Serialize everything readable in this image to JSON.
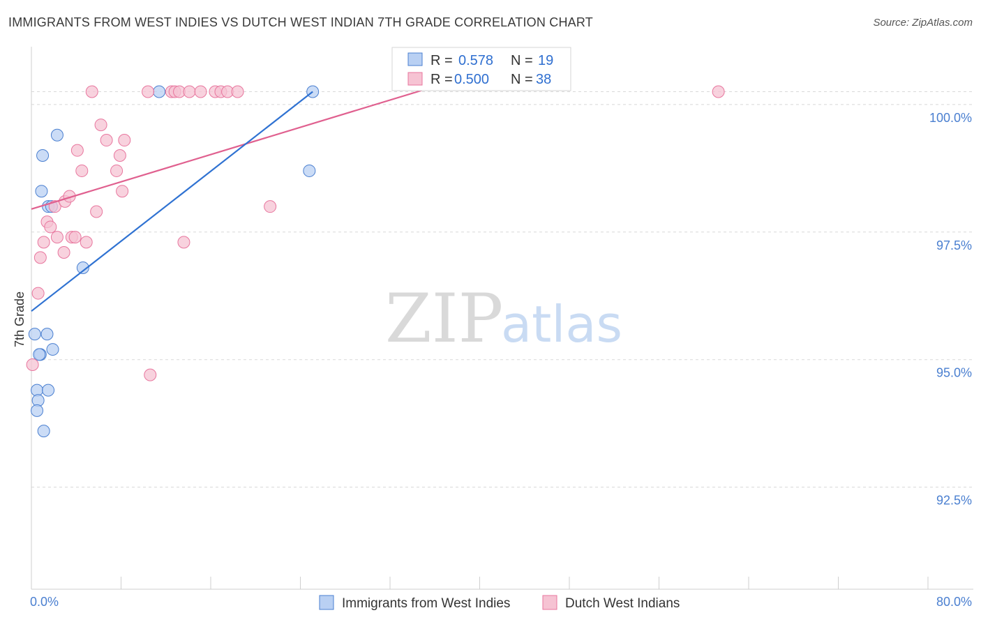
{
  "title": "IMMIGRANTS FROM WEST INDIES VS DUTCH WEST INDIAN 7TH GRADE CORRELATION CHART",
  "source": "Source: ZipAtlas.com",
  "watermark": {
    "zip": "ZIP",
    "atlas": "atlas"
  },
  "colors": {
    "blue": "#4a7fd0",
    "blue_fill": "#b9d0f3",
    "blue_line": "#2f72d2",
    "pink": "#e8769e",
    "pink_fill": "#f6c3d3",
    "pink_line": "#e0608f",
    "grid": "#d8d8d8",
    "axis_text": "#4a7fd0"
  },
  "legend": {
    "r_label": "R =",
    "n_label": "N =",
    "entries": [
      {
        "r": "0.578",
        "n": "19"
      },
      {
        "r": "0.500",
        "n": "38"
      }
    ]
  },
  "chart_data": {
    "type": "scatter",
    "title": "IMMIGRANTS FROM WEST INDIES VS DUTCH WEST INDIAN 7TH GRADE CORRELATION CHART",
    "xlabel": "",
    "ylabel": "7th Grade",
    "xlim": [
      0,
      80
    ],
    "ylim": [
      90.5,
      101.2
    ],
    "x_tick_labels": [
      {
        "value": 0,
        "label": "0.0%"
      },
      {
        "value": 80,
        "label": "80.0%"
      }
    ],
    "y_ticks": [
      {
        "value": 100.0,
        "label": "100.0%"
      },
      {
        "value": 97.5,
        "label": "97.5%"
      },
      {
        "value": 95.0,
        "label": "95.0%"
      },
      {
        "value": 92.5,
        "label": "92.5%"
      }
    ],
    "series": [
      {
        "name": "Immigrants from West Indies",
        "color": "blue",
        "points": [
          [
            0.3,
            95.5
          ],
          [
            0.5,
            94.4
          ],
          [
            0.6,
            94.2
          ],
          [
            0.5,
            94.0
          ],
          [
            0.8,
            95.1
          ],
          [
            0.9,
            98.3
          ],
          [
            1.0,
            99.0
          ],
          [
            1.1,
            93.6
          ],
          [
            1.4,
            95.5
          ],
          [
            1.5,
            94.4
          ],
          [
            1.5,
            98.0
          ],
          [
            1.8,
            98.0
          ],
          [
            1.9,
            95.2
          ],
          [
            2.3,
            99.4
          ],
          [
            4.6,
            96.8
          ],
          [
            11.4,
            100.25
          ],
          [
            24.8,
            98.7
          ],
          [
            25.1,
            100.25
          ],
          [
            0.7,
            95.1
          ]
        ],
        "trend": {
          "x": [
            0.0,
            25.1
          ],
          "y": [
            95.95,
            100.25
          ]
        }
      },
      {
        "name": "Dutch West Indians",
        "color": "pink",
        "points": [
          [
            0.1,
            94.9
          ],
          [
            0.6,
            96.3
          ],
          [
            0.8,
            97.0
          ],
          [
            1.1,
            97.3
          ],
          [
            1.4,
            97.7
          ],
          [
            1.7,
            97.6
          ],
          [
            2.1,
            98.0
          ],
          [
            2.3,
            97.4
          ],
          [
            2.9,
            97.1
          ],
          [
            3.0,
            98.1
          ],
          [
            3.4,
            98.2
          ],
          [
            3.6,
            97.4
          ],
          [
            3.9,
            97.4
          ],
          [
            4.1,
            99.1
          ],
          [
            4.5,
            98.7
          ],
          [
            4.9,
            97.3
          ],
          [
            5.4,
            100.25
          ],
          [
            5.8,
            97.9
          ],
          [
            6.2,
            99.6
          ],
          [
            6.7,
            99.3
          ],
          [
            7.6,
            98.7
          ],
          [
            7.9,
            99.0
          ],
          [
            8.1,
            98.3
          ],
          [
            8.3,
            99.3
          ],
          [
            10.4,
            100.25
          ],
          [
            10.6,
            94.7
          ],
          [
            12.5,
            100.25
          ],
          [
            12.8,
            100.25
          ],
          [
            13.2,
            100.25
          ],
          [
            13.6,
            97.3
          ],
          [
            14.1,
            100.25
          ],
          [
            15.1,
            100.25
          ],
          [
            16.4,
            100.25
          ],
          [
            16.9,
            100.25
          ],
          [
            17.5,
            100.25
          ],
          [
            18.4,
            100.25
          ],
          [
            21.3,
            98.0
          ],
          [
            61.3,
            100.25
          ]
        ],
        "trend": {
          "x": [
            0.0,
            35.2
          ],
          "y": [
            97.95,
            100.3
          ]
        }
      }
    ]
  }
}
